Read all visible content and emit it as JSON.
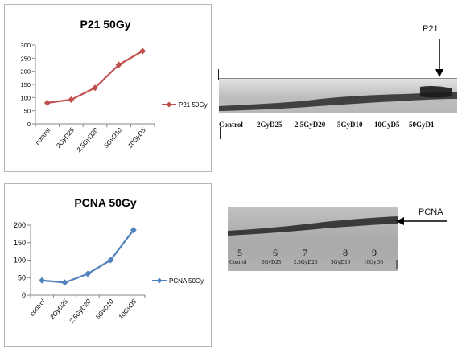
{
  "chart_data": [
    {
      "type": "line",
      "title": "P21 50Gy",
      "categories": [
        "control",
        "2GyD25",
        "2.5GyD20",
        "5GyD10",
        "10GyD5"
      ],
      "series": [
        {
          "name": "P21 50Gy",
          "values": [
            80,
            92,
            137,
            225,
            277
          ],
          "color": "#c0504d",
          "marker": "diamond"
        }
      ],
      "ylim": [
        0,
        300
      ],
      "yticks": [
        0,
        50,
        100,
        150,
        200,
        250,
        300
      ],
      "legend": "right",
      "grid": false
    },
    {
      "type": "line",
      "title": "PCNA 50Gy",
      "categories": [
        "control",
        "2GyD25",
        "2.5GyD20",
        "5GyD10",
        "10GyD5"
      ],
      "series": [
        {
          "name": "PCNA 50Gy",
          "values": [
            42,
            36,
            61,
            100,
            186
          ],
          "color": "#4f81bd",
          "marker": "diamond"
        }
      ],
      "ylim": [
        0,
        200
      ],
      "yticks": [
        0,
        50,
        100,
        150,
        200
      ],
      "legend": "right",
      "grid": false
    }
  ],
  "blots": {
    "p21": {
      "marker": "P21",
      "lanes": [
        "Control",
        "2GyD25",
        "2.5GyD20",
        "5GyD10",
        "10GyD5",
        "50GyD1"
      ]
    },
    "pcna": {
      "marker": "PCNA",
      "lane_numbers": [
        "5",
        "6",
        "7",
        "8",
        "9"
      ],
      "lanes": [
        "Control",
        "2GyD25",
        "2.5GyD20",
        "5GyD10",
        "10GyD5"
      ]
    }
  }
}
